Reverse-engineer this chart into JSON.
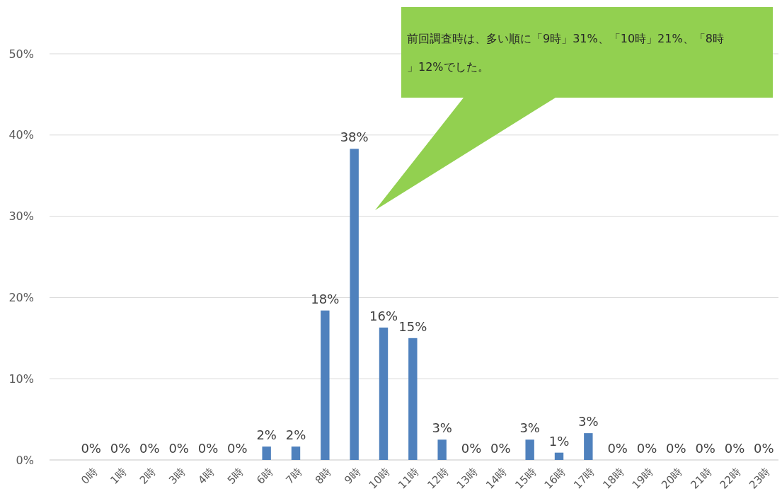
{
  "chart_data": {
    "type": "bar",
    "categories": [
      "0時",
      "1時",
      "2時",
      "3時",
      "4時",
      "5時",
      "6時",
      "7時",
      "8時",
      "9時",
      "10時",
      "11時",
      "12時",
      "13時",
      "14時",
      "15時",
      "16時",
      "17時",
      "18時",
      "19時",
      "20時",
      "21時",
      "22時",
      "23時"
    ],
    "values": [
      0,
      0,
      0,
      0,
      0,
      0,
      1.65,
      1.65,
      18.4,
      38.3,
      16.3,
      15.0,
      2.5,
      0,
      0,
      2.5,
      0.9,
      3.3,
      0,
      0,
      0,
      0,
      0,
      0
    ],
    "value_labels": [
      "0%",
      "0%",
      "0%",
      "0%",
      "0%",
      "0%",
      "2%",
      "2%",
      "18%",
      "38%",
      "16%",
      "15%",
      "3%",
      "0%",
      "0%",
      "3%",
      "1%",
      "3%",
      "0%",
      "0%",
      "0%",
      "0%",
      "0%",
      "0%"
    ],
    "color": "#4f81bd",
    "ylim": [
      0,
      50
    ],
    "yticks": [
      {
        "value": 0,
        "label": "0%"
      },
      {
        "value": 10,
        "label": "10%"
      },
      {
        "value": 20,
        "label": "20%"
      },
      {
        "value": 30,
        "label": "30%"
      },
      {
        "value": 40,
        "label": "40%"
      },
      {
        "value": 50,
        "label": "50%"
      }
    ],
    "grid": "y",
    "annotations": [
      "前回調査時は、多い順に「9時」31%、「10時」21%、「8時」12%でした。"
    ]
  }
}
